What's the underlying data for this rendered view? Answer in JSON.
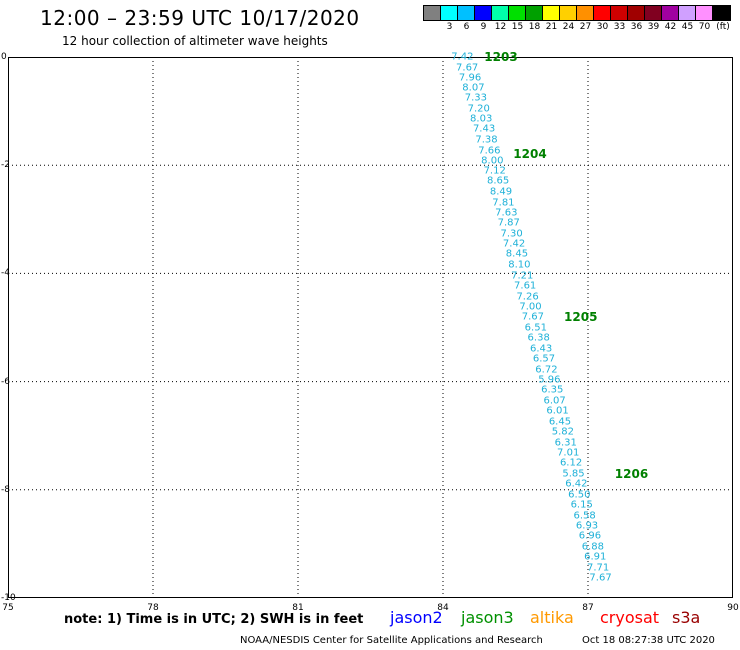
{
  "header": {
    "title": "12:00 – 23:59 UTC 10/17/2020",
    "subtitle": "12 hour collection of altimeter wave heights"
  },
  "legend": {
    "unit": "(ft)",
    "ticks": [
      "3",
      "6",
      "9",
      "12",
      "15",
      "18",
      "21",
      "24",
      "27",
      "30",
      "33",
      "36",
      "39",
      "42",
      "45",
      "70"
    ],
    "colors": [
      "#808080",
      "#00ffff",
      "#00c0ff",
      "#0000ff",
      "#00ffaa",
      "#00e000",
      "#00a000",
      "#ffff00",
      "#ffd000",
      "#ff9000",
      "#ff0000",
      "#d00000",
      "#a00000",
      "#800020",
      "#a000a0",
      "#d0a0ff",
      "#ff90ff",
      "#000000"
    ]
  },
  "axes": {
    "x_ticks": [
      "75",
      "78",
      "81",
      "84",
      "87",
      "90"
    ],
    "y_ticks": [
      "0",
      "-2",
      "-4",
      "-6",
      "-8",
      "-10"
    ]
  },
  "chart_data": {
    "type": "scatter",
    "xlim": [
      75,
      90
    ],
    "ylim": [
      -10,
      0
    ],
    "grid": true,
    "swh_ft": [
      {
        "lon": 84.4,
        "lat": 0.0,
        "v": "7.42"
      },
      {
        "lon": 84.5,
        "lat": -0.2,
        "v": "7.67"
      },
      {
        "lon": 84.56,
        "lat": -0.38,
        "v": "7.96"
      },
      {
        "lon": 84.63,
        "lat": -0.57,
        "v": "8.07"
      },
      {
        "lon": 84.68,
        "lat": -0.76,
        "v": "7.33"
      },
      {
        "lon": 84.74,
        "lat": -0.96,
        "v": "7.20"
      },
      {
        "lon": 84.79,
        "lat": -1.15,
        "v": "8.03"
      },
      {
        "lon": 84.85,
        "lat": -1.34,
        "v": "7.43"
      },
      {
        "lon": 84.9,
        "lat": -1.53,
        "v": "7.38"
      },
      {
        "lon": 84.96,
        "lat": -1.73,
        "v": "7.66"
      },
      {
        "lon": 85.02,
        "lat": -1.92,
        "v": "8.00"
      },
      {
        "lon": 85.07,
        "lat": -2.11,
        "v": "7.12"
      },
      {
        "lon": 85.14,
        "lat": -2.3,
        "v": "8.65"
      },
      {
        "lon": 85.2,
        "lat": -2.5,
        "v": "8.49"
      },
      {
        "lon": 85.25,
        "lat": -2.69,
        "v": "7.81"
      },
      {
        "lon": 85.31,
        "lat": -2.88,
        "v": "7.63"
      },
      {
        "lon": 85.36,
        "lat": -3.07,
        "v": "7.87"
      },
      {
        "lon": 85.42,
        "lat": -3.27,
        "v": "7.30"
      },
      {
        "lon": 85.47,
        "lat": -3.46,
        "v": "7.42"
      },
      {
        "lon": 85.53,
        "lat": -3.65,
        "v": "8.45"
      },
      {
        "lon": 85.58,
        "lat": -3.85,
        "v": "8.10"
      },
      {
        "lon": 85.64,
        "lat": -4.04,
        "v": "7.21"
      },
      {
        "lon": 85.7,
        "lat": -4.23,
        "v": "7.61"
      },
      {
        "lon": 85.75,
        "lat": -4.43,
        "v": "7.26"
      },
      {
        "lon": 85.81,
        "lat": -4.62,
        "v": "7.00"
      },
      {
        "lon": 85.86,
        "lat": -4.81,
        "v": "7.67"
      },
      {
        "lon": 85.92,
        "lat": -5.0,
        "v": "6.51"
      },
      {
        "lon": 85.98,
        "lat": -5.2,
        "v": "6.38"
      },
      {
        "lon": 86.03,
        "lat": -5.39,
        "v": "6.43"
      },
      {
        "lon": 86.09,
        "lat": -5.58,
        "v": "6.57"
      },
      {
        "lon": 86.14,
        "lat": -5.78,
        "v": "6.72"
      },
      {
        "lon": 86.2,
        "lat": -5.97,
        "v": "5.96"
      },
      {
        "lon": 86.26,
        "lat": -6.16,
        "v": "6.35"
      },
      {
        "lon": 86.31,
        "lat": -6.35,
        "v": "6.07"
      },
      {
        "lon": 86.37,
        "lat": -6.55,
        "v": "6.01"
      },
      {
        "lon": 86.42,
        "lat": -6.74,
        "v": "6.45"
      },
      {
        "lon": 86.48,
        "lat": -6.93,
        "v": "5.82"
      },
      {
        "lon": 86.54,
        "lat": -7.13,
        "v": "6.31"
      },
      {
        "lon": 86.59,
        "lat": -7.32,
        "v": "7.01"
      },
      {
        "lon": 86.65,
        "lat": -7.51,
        "v": "6.12"
      },
      {
        "lon": 86.7,
        "lat": -7.7,
        "v": "5.85"
      },
      {
        "lon": 86.76,
        "lat": -7.9,
        "v": "6.42"
      },
      {
        "lon": 86.82,
        "lat": -8.09,
        "v": "6.50"
      },
      {
        "lon": 86.87,
        "lat": -8.28,
        "v": "6.15"
      },
      {
        "lon": 86.93,
        "lat": -8.48,
        "v": "6.58"
      },
      {
        "lon": 86.98,
        "lat": -8.67,
        "v": "6.93"
      },
      {
        "lon": 87.04,
        "lat": -8.86,
        "v": "6.96"
      },
      {
        "lon": 87.1,
        "lat": -9.05,
        "v": "6.88"
      },
      {
        "lon": 87.15,
        "lat": -9.25,
        "v": "6.91"
      },
      {
        "lon": 87.21,
        "lat": -9.44,
        "v": "7.71"
      },
      {
        "lon": 87.26,
        "lat": -9.63,
        "v": "7.67"
      }
    ],
    "time_labels": [
      {
        "lon": 85.2,
        "lat": 0.0,
        "v": "1203"
      },
      {
        "lon": 85.8,
        "lat": -1.8,
        "v": "1204"
      },
      {
        "lon": 86.85,
        "lat": -4.8,
        "v": "1205"
      },
      {
        "lon": 87.9,
        "lat": -7.7,
        "v": "1206"
      }
    ]
  },
  "footer": {
    "note": "note: 1) Time is in UTC; 2) SWH is in feet",
    "satellites": [
      {
        "name": "jason2",
        "color": "#0000ff"
      },
      {
        "name": "jason3",
        "color": "#009000"
      },
      {
        "name": "altika",
        "color": "#ff9900"
      },
      {
        "name": "cryosat",
        "color": "#ff0000"
      },
      {
        "name": "s3a",
        "color": "#990000"
      }
    ],
    "credit": "NOAA/NESDIS Center for Satellite Applications and Research",
    "timestamp": "Oct 18 08:27:38 UTC 2020"
  }
}
